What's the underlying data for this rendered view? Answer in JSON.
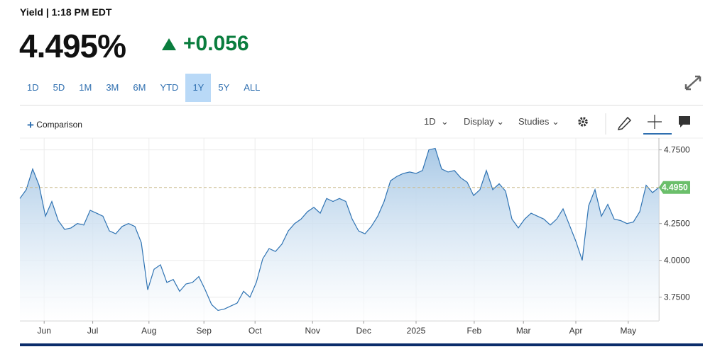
{
  "header": {
    "label": "Yield | 1:18 PM EDT",
    "price": "4.495%",
    "change": "+0.056"
  },
  "ranges": [
    "1D",
    "5D",
    "1M",
    "3M",
    "6M",
    "YTD",
    "1Y",
    "5Y",
    "ALL"
  ],
  "selected_range": "1Y",
  "toolbar": {
    "comparison": "Comparison",
    "interval": "1D",
    "display": "Display",
    "studies": "Studies"
  },
  "chart_data": {
    "type": "line",
    "color": "#2f73b3",
    "values": [
      4.42,
      4.48,
      4.62,
      4.51,
      4.3,
      4.4,
      4.27,
      4.21,
      4.22,
      4.25,
      4.24,
      4.34,
      4.32,
      4.3,
      4.2,
      4.18,
      4.23,
      4.25,
      4.23,
      4.12,
      3.8,
      3.94,
      3.97,
      3.85,
      3.87,
      3.79,
      3.84,
      3.85,
      3.89,
      3.8,
      3.7,
      3.66,
      3.67,
      3.69,
      3.71,
      3.79,
      3.75,
      3.85,
      4.01,
      4.08,
      4.06,
      4.11,
      4.2,
      4.25,
      4.28,
      4.33,
      4.36,
      4.32,
      4.42,
      4.4,
      4.42,
      4.4,
      4.28,
      4.2,
      4.18,
      4.23,
      4.3,
      4.4,
      4.54,
      4.57,
      4.59,
      4.6,
      4.59,
      4.61,
      4.75,
      4.76,
      4.62,
      4.6,
      4.61,
      4.56,
      4.53,
      4.44,
      4.48,
      4.61,
      4.48,
      4.52,
      4.47,
      4.28,
      4.22,
      4.28,
      4.32,
      4.3,
      4.28,
      4.24,
      4.28,
      4.35,
      4.24,
      4.13,
      4.0,
      4.37,
      4.48,
      4.3,
      4.38,
      4.28,
      4.27,
      4.25,
      4.26,
      4.33,
      4.51,
      4.46,
      4.495
    ],
    "xlim": [
      0,
      100
    ],
    "xticks": [
      {
        "value": 3.8,
        "label": "Jun"
      },
      {
        "value": 11.4,
        "label": "Jul"
      },
      {
        "value": 20.2,
        "label": "Aug"
      },
      {
        "value": 28.8,
        "label": "Sep"
      },
      {
        "value": 36.8,
        "label": "Oct"
      },
      {
        "value": 45.8,
        "label": "Nov"
      },
      {
        "value": 53.8,
        "label": "Dec"
      },
      {
        "value": 62,
        "label": "2025"
      },
      {
        "value": 71.1,
        "label": "Feb"
      },
      {
        "value": 78.8,
        "label": "Mar"
      },
      {
        "value": 87,
        "label": "Apr"
      },
      {
        "value": 95.2,
        "label": "May"
      }
    ],
    "ylim": [
      3.59,
      4.83
    ],
    "yticks": [
      {
        "value": 3.75,
        "label": "3.7500"
      },
      {
        "value": 4.0,
        "label": "4.0000"
      },
      {
        "value": 4.25,
        "label": "4.2500"
      },
      {
        "value": 4.75,
        "label": "4.7500"
      }
    ],
    "last_value": 4.495,
    "last_value_label": "4.4950",
    "grid": true
  }
}
